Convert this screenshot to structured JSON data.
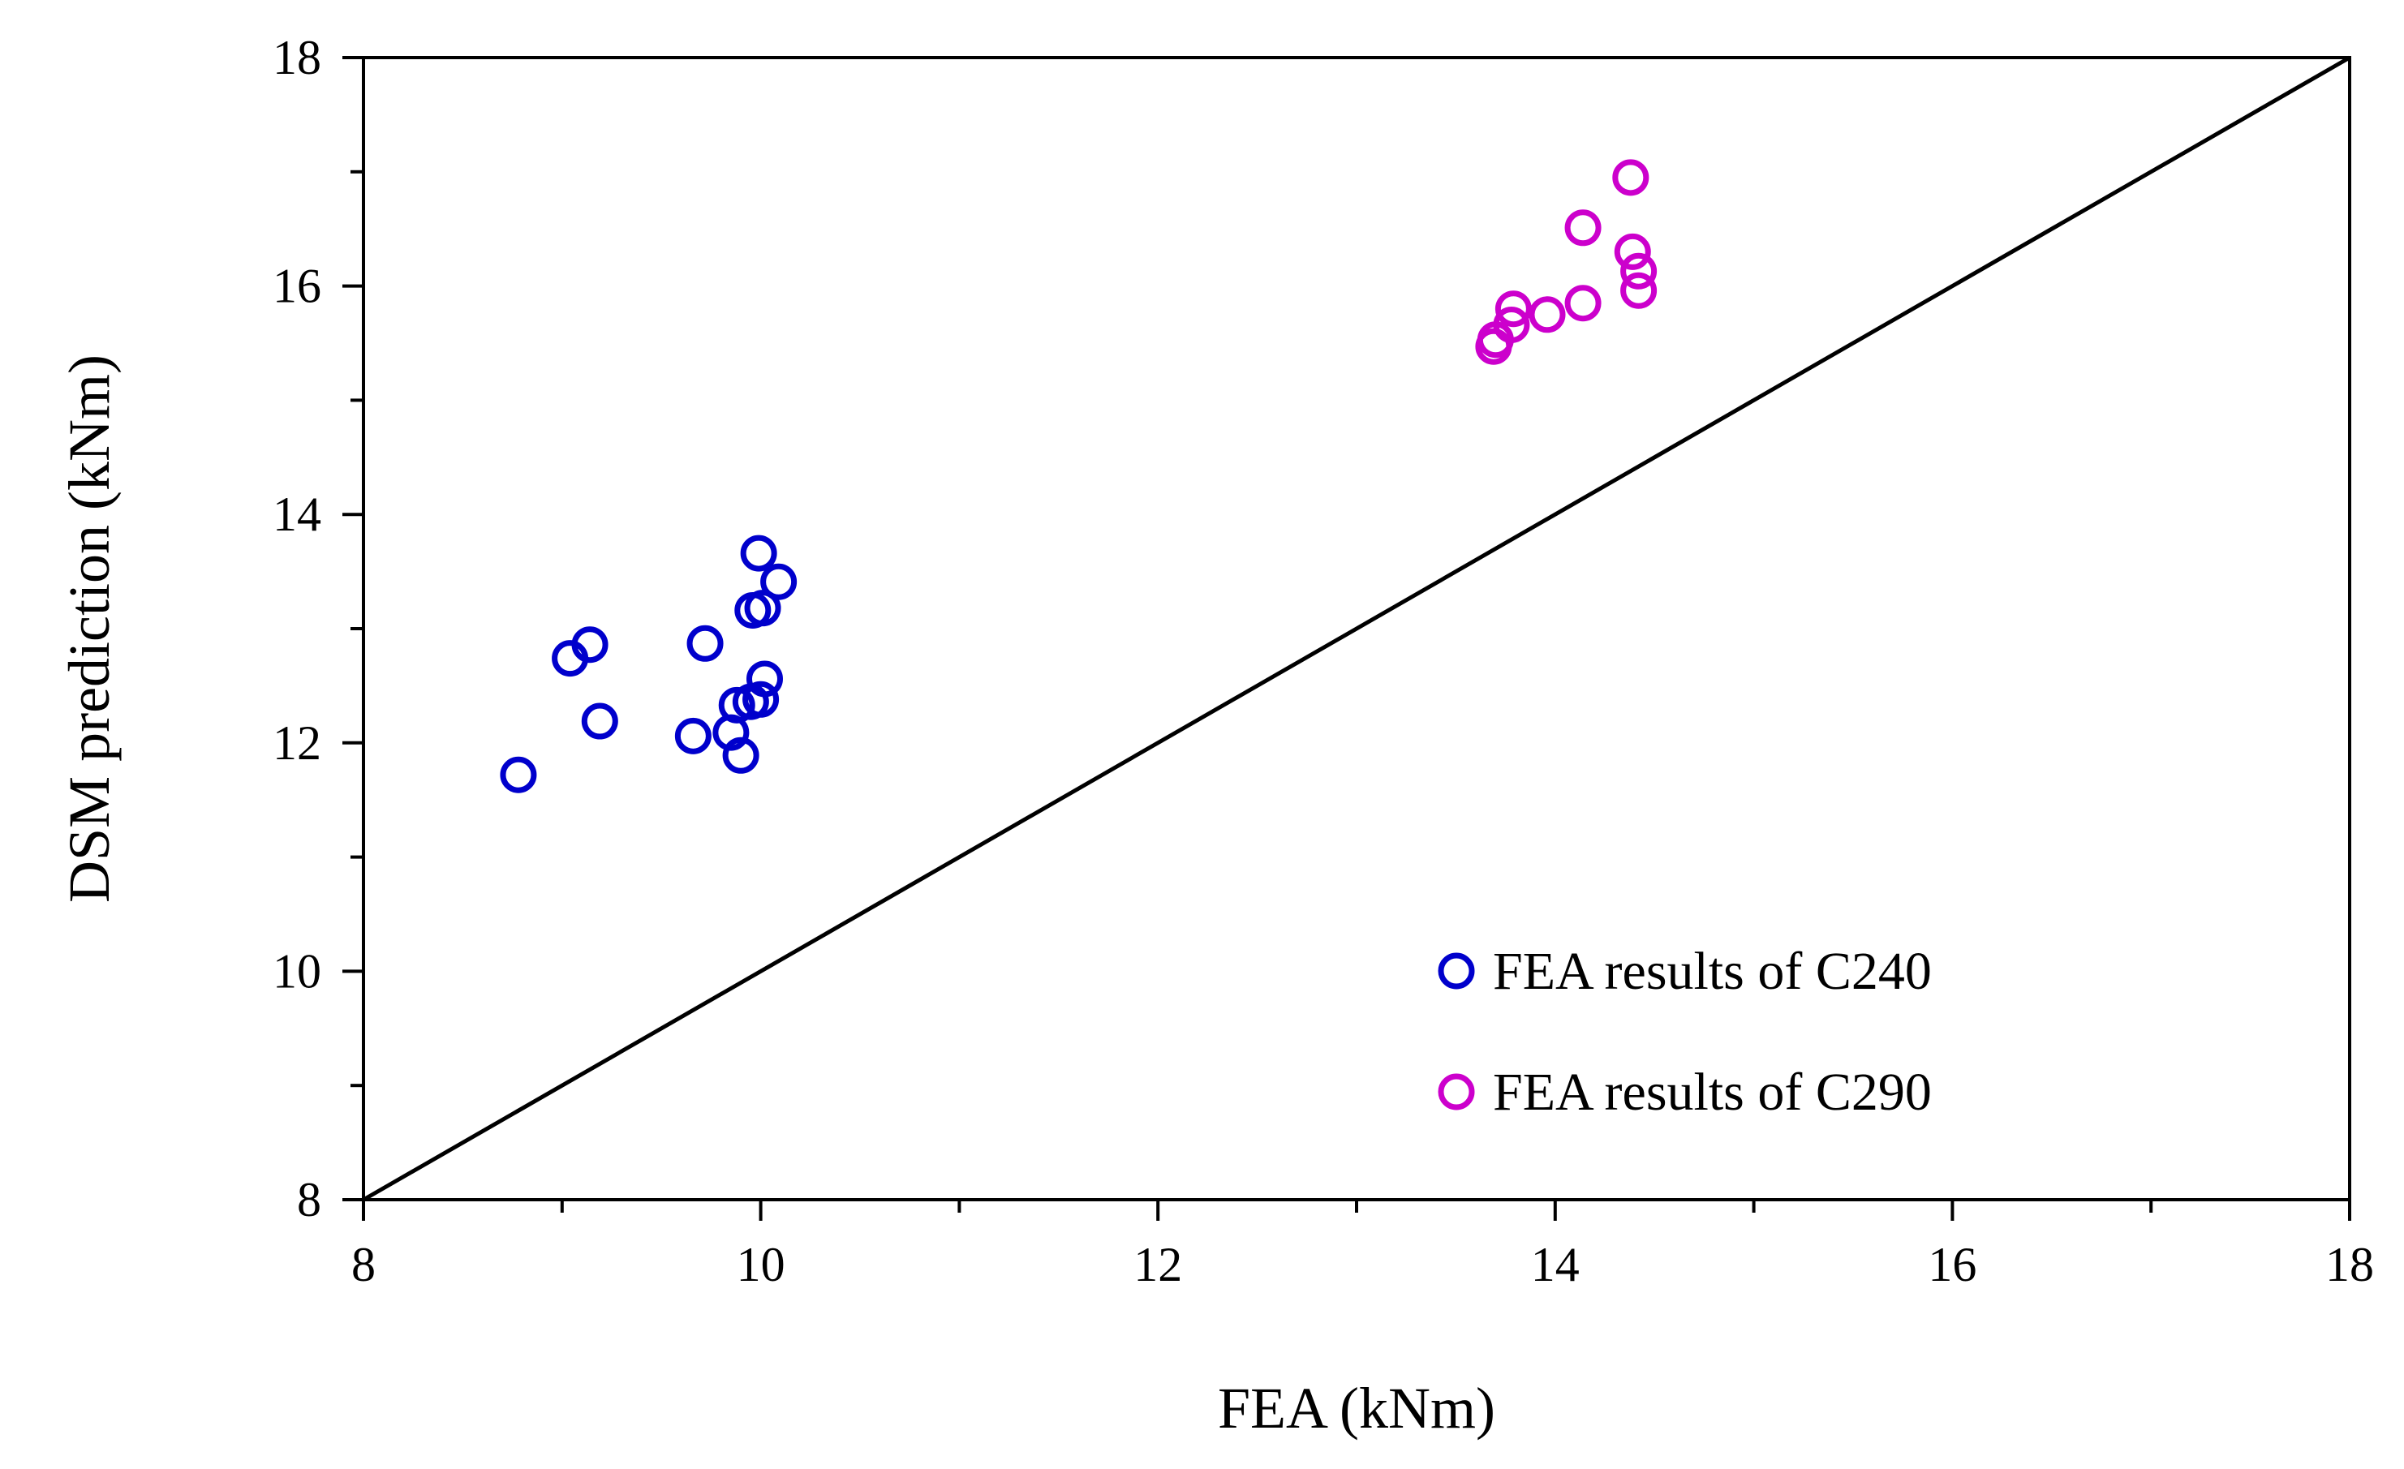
{
  "chart_data": {
    "type": "scatter",
    "title": "",
    "xlabel": "FEA (kNm)",
    "ylabel": "DSM prediction (kNm)",
    "xlim": [
      8,
      18
    ],
    "ylim": [
      8,
      18
    ],
    "xticks": [
      8,
      10,
      12,
      14,
      16,
      18
    ],
    "yticks": [
      8,
      10,
      12,
      14,
      16,
      18
    ],
    "xticks_minor": [
      9,
      11,
      13,
      15,
      17
    ],
    "yticks_minor": [
      9,
      11,
      13,
      15,
      17
    ],
    "grid": false,
    "legend_position": "bottom-right",
    "reference_line": {
      "name": "y = x",
      "x": [
        8,
        18
      ],
      "y": [
        8,
        18
      ],
      "color": "#000000"
    },
    "series": [
      {
        "name": "FEA results of C240",
        "color": "#0000cc",
        "marker": "open-circle",
        "points": [
          [
            8.78,
            11.72
          ],
          [
            9.04,
            12.74
          ],
          [
            9.14,
            12.86
          ],
          [
            9.19,
            12.19
          ],
          [
            9.66,
            12.06
          ],
          [
            9.72,
            12.87
          ],
          [
            9.85,
            12.09
          ],
          [
            9.88,
            12.33
          ],
          [
            9.9,
            11.89
          ],
          [
            9.95,
            12.36
          ],
          [
            9.96,
            13.16
          ],
          [
            9.99,
            13.66
          ],
          [
            10.0,
            12.38
          ],
          [
            10.01,
            13.18
          ],
          [
            10.02,
            12.56
          ],
          [
            10.09,
            13.41
          ]
        ]
      },
      {
        "name": "FEA results of C290",
        "color": "#cc00cc",
        "marker": "open-circle",
        "points": [
          [
            13.69,
            15.47
          ],
          [
            13.7,
            15.53
          ],
          [
            13.78,
            15.66
          ],
          [
            13.79,
            15.8
          ],
          [
            13.96,
            15.75
          ],
          [
            14.14,
            16.51
          ],
          [
            14.14,
            15.85
          ],
          [
            14.38,
            16.95
          ],
          [
            14.39,
            16.3
          ],
          [
            14.42,
            16.13
          ],
          [
            14.42,
            15.96
          ]
        ]
      }
    ]
  }
}
